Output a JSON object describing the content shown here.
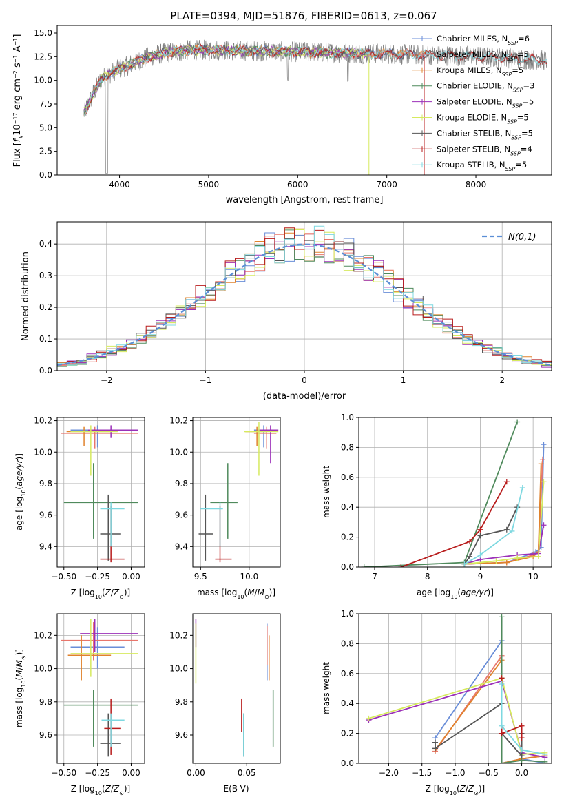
{
  "figure": {
    "title": "PLATE=0394, MJD=51876, FIBERID=0613, z=0.067"
  },
  "colors": {
    "Chabrier MILES": "#6a8ed8",
    "Salpeter MILES": "#e8766c",
    "Kroupa MILES": "#e0822c",
    "Chabrier ELODIE": "#4f8a5c",
    "Salpeter ELODIE": "#9b30b8",
    "Kroupa ELODIE": "#d6ea5e",
    "Chabrier STELIB": "#555555",
    "Salpeter STELIB": "#b81c1c",
    "Kroupa STELIB": "#7ed8e0",
    "data": "#808080",
    "normal": "#5b8ed6"
  },
  "chart_data": [
    {
      "id": "spectrum",
      "type": "line",
      "title": "PLATE=0394, MJD=51876, FIBERID=0613, z=0.067",
      "xlabel": "wavelength [Angstrom, rest frame]",
      "ylabel": "Flux [f_λ 10^-17 erg cm^-2 s^-1 A^-1]",
      "xlim": [
        3300,
        8850
      ],
      "ylim": [
        0,
        15.8
      ],
      "xticks": [
        4000,
        5000,
        6000,
        7000,
        8000
      ],
      "yticks": [
        0.0,
        2.5,
        5.0,
        7.5,
        10.0,
        12.5,
        15.0
      ],
      "grid": false,
      "legend": "top-right",
      "continuum": [
        [
          3600,
          6.5
        ],
        [
          3700,
          8.5
        ],
        [
          3800,
          10.2
        ],
        [
          3950,
          11.0
        ],
        [
          4100,
          11.6
        ],
        [
          4300,
          12.4
        ],
        [
          4500,
          12.9
        ],
        [
          4800,
          13.2
        ],
        [
          5100,
          13.2
        ],
        [
          5500,
          13.1
        ],
        [
          6000,
          13.0
        ],
        [
          6500,
          12.9
        ],
        [
          7000,
          12.8
        ],
        [
          7400,
          12.7
        ],
        [
          7800,
          12.6
        ],
        [
          8300,
          12.4
        ],
        [
          8800,
          12.1
        ]
      ],
      "series": [
        {
          "name": "Chabrier MILES, N_SSP=6",
          "end": 7450
        },
        {
          "name": "Salpeter MILES, N_SSP=5",
          "end": 7450
        },
        {
          "name": "Kroupa MILES, N_SSP=5",
          "end": 7450
        },
        {
          "name": "Chabrier ELODIE, N_SSP=3",
          "end": 6800
        },
        {
          "name": "Salpeter ELODIE, N_SSP=5",
          "end": 6800
        },
        {
          "name": "Kroupa ELODIE, N_SSP=5",
          "end": 6800
        },
        {
          "name": "Chabrier STELIB, N_SSP=5",
          "end": 8800
        },
        {
          "name": "Salpeter STELIB, N_SSP=4",
          "end": 8800
        },
        {
          "name": "Kroupa STELIB, N_SSP=5",
          "end": 8800
        }
      ]
    },
    {
      "id": "residuals",
      "type": "line",
      "xlabel": "(data-model)/error",
      "ylabel": "Normed distribution",
      "xlim": [
        -2.5,
        2.5
      ],
      "ylim": [
        0,
        0.47
      ],
      "xticks": [
        -2,
        -1,
        0,
        1,
        2
      ],
      "yticks": [
        0.0,
        0.1,
        0.2,
        0.3,
        0.4
      ],
      "grid": true,
      "legend": "top-right",
      "normal_label": "N(0,1)",
      "bin_width": 0.1
    },
    {
      "id": "age_vs_Z",
      "type": "scatter",
      "xlabel": "Z [log10(Z/Z⊙)]",
      "ylabel": "age [log10(age/yr)]",
      "xlim": [
        -0.55,
        0.1
      ],
      "ylim": [
        9.27,
        10.22
      ],
      "xticks": [
        -0.5,
        -0.25,
        0.0
      ],
      "xtick_labels": [
        "−0.50",
        "−0.25",
        "0.00"
      ],
      "yticks": [
        9.4,
        9.6,
        9.8,
        10.0,
        10.2
      ],
      "grid": true,
      "points": [
        {
          "model": "Chabrier MILES",
          "x": -0.25,
          "y": 10.14,
          "ex": [
            -0.45,
            -0.05
          ],
          "ey": [
            10.03,
            10.17
          ]
        },
        {
          "model": "Salpeter MILES",
          "x": -0.27,
          "y": 10.12,
          "ex": [
            -0.52,
            0.05
          ],
          "ey": [
            10.02,
            10.16
          ]
        },
        {
          "model": "Kroupa MILES",
          "x": -0.35,
          "y": 10.13,
          "ex": [
            -0.48,
            -0.15
          ],
          "ey": [
            10.04,
            10.16
          ]
        },
        {
          "model": "Chabrier ELODIE",
          "x": -0.28,
          "y": 9.68,
          "ex": [
            -0.5,
            0.05
          ],
          "ey": [
            9.45,
            9.93
          ]
        },
        {
          "model": "Salpeter ELODIE",
          "x": -0.15,
          "y": 10.14,
          "ex": [
            -0.32,
            0.05
          ],
          "ey": [
            10.09,
            10.17
          ]
        },
        {
          "model": "Kroupa ELODIE",
          "x": -0.3,
          "y": 10.13,
          "ex": [
            -0.45,
            -0.1
          ],
          "ey": [
            9.85,
            10.17
          ]
        },
        {
          "model": "Chabrier STELIB",
          "x": -0.17,
          "y": 9.48,
          "ex": [
            -0.23,
            -0.08
          ],
          "ey": [
            9.31,
            9.73
          ]
        },
        {
          "model": "Salpeter STELIB",
          "x": -0.15,
          "y": 9.32,
          "ex": [
            -0.23,
            -0.05
          ],
          "ey": [
            9.3,
            9.66
          ]
        },
        {
          "model": "Kroupa STELIB",
          "x": -0.15,
          "y": 9.64,
          "ex": [
            -0.23,
            -0.05
          ],
          "ey": [
            9.4,
            9.68
          ]
        }
      ]
    },
    {
      "id": "age_vs_mass",
      "type": "scatter",
      "xlabel": "mass [log10(M/M⊙)]",
      "ylabel": "",
      "xlim": [
        9.42,
        10.32
      ],
      "ylim": [
        9.27,
        10.22
      ],
      "xticks": [
        9.5,
        10.0
      ],
      "xtick_labels": [
        "9.5",
        "10.0"
      ],
      "yticks": [
        9.4,
        9.6,
        9.8,
        10.0,
        10.2
      ],
      "grid": true,
      "points": [
        {
          "model": "Chabrier MILES",
          "x": 10.15,
          "y": 10.14,
          "ex": [
            10.05,
            10.25
          ],
          "ey": [
            10.03,
            10.17
          ]
        },
        {
          "model": "Salpeter MILES",
          "x": 10.18,
          "y": 10.12,
          "ex": [
            10.05,
            10.28
          ],
          "ey": [
            10.02,
            10.16
          ]
        },
        {
          "model": "Kroupa MILES",
          "x": 10.08,
          "y": 10.13,
          "ex": [
            9.96,
            10.18
          ],
          "ey": [
            10.04,
            10.16
          ]
        },
        {
          "model": "Chabrier ELODIE",
          "x": 9.78,
          "y": 9.68,
          "ex": [
            9.6,
            9.88
          ],
          "ey": [
            9.45,
            9.93
          ]
        },
        {
          "model": "Salpeter ELODIE",
          "x": 10.22,
          "y": 10.14,
          "ex": [
            10.1,
            10.3
          ],
          "ey": [
            9.93,
            10.17
          ]
        },
        {
          "model": "Kroupa ELODIE",
          "x": 10.1,
          "y": 10.13,
          "ex": [
            9.95,
            10.3
          ],
          "ey": [
            9.85,
            10.19
          ]
        },
        {
          "model": "Chabrier STELIB",
          "x": 9.55,
          "y": 9.48,
          "ex": [
            9.48,
            9.63
          ],
          "ey": [
            9.31,
            9.73
          ]
        },
        {
          "model": "Salpeter STELIB",
          "x": 9.7,
          "y": 9.32,
          "ex": [
            9.65,
            9.82
          ],
          "ey": [
            9.3,
            9.66
          ]
        },
        {
          "model": "Kroupa STELIB",
          "x": 9.7,
          "y": 9.64,
          "ex": [
            9.5,
            9.73
          ],
          "ey": [
            9.4,
            9.68
          ]
        }
      ]
    },
    {
      "id": "mass_weight_vs_age",
      "type": "line",
      "xlabel": "age [log10(age/yr)]",
      "ylabel": "mass weight",
      "xlim": [
        6.7,
        10.35
      ],
      "ylim": [
        0,
        1.0
      ],
      "xticks": [
        7,
        8,
        9,
        10
      ],
      "yticks": [
        0.0,
        0.2,
        0.4,
        0.6,
        0.8,
        1.0
      ],
      "grid": true,
      "series": [
        {
          "model": "Chabrier MILES",
          "x": [
            8.7,
            9.5,
            10.05,
            10.15,
            10.2
          ],
          "y": [
            0.02,
            0.03,
            0.1,
            0.13,
            0.82
          ]
        },
        {
          "model": "Salpeter MILES",
          "x": [
            8.7,
            9.5,
            10.0,
            10.1,
            10.18
          ],
          "y": [
            0.02,
            0.03,
            0.08,
            0.1,
            0.72
          ]
        },
        {
          "model": "Kroupa MILES",
          "x": [
            8.7,
            9.5,
            10.0,
            10.1,
            10.15
          ],
          "y": [
            0.02,
            0.03,
            0.07,
            0.1,
            0.69
          ]
        },
        {
          "model": "Chabrier ELODIE",
          "x": [
            6.8,
            8.7,
            9.7
          ],
          "y": [
            0.0,
            0.03,
            0.97
          ]
        },
        {
          "model": "Salpeter ELODIE",
          "x": [
            8.7,
            9.0,
            9.7,
            10.1,
            10.2
          ],
          "y": [
            0.02,
            0.05,
            0.08,
            0.09,
            0.28
          ]
        },
        {
          "model": "Kroupa ELODIE",
          "x": [
            8.7,
            9.3,
            9.7,
            10.1,
            10.2
          ],
          "y": [
            0.02,
            0.04,
            0.06,
            0.07,
            0.57
          ]
        },
        {
          "model": "Chabrier STELIB",
          "x": [
            8.7,
            8.8,
            9.0,
            9.5,
            9.7
          ],
          "y": [
            0.02,
            0.07,
            0.21,
            0.25,
            0.4
          ]
        },
        {
          "model": "Salpeter STELIB",
          "x": [
            7.5,
            8.8,
            9.0,
            9.5
          ],
          "y": [
            0.0,
            0.17,
            0.25,
            0.57
          ]
        },
        {
          "model": "Kroupa STELIB",
          "x": [
            8.7,
            9.0,
            9.6,
            9.8
          ],
          "y": [
            0.02,
            0.08,
            0.24,
            0.53
          ]
        }
      ]
    },
    {
      "id": "mass_vs_Z",
      "type": "scatter",
      "xlabel": "Z [log10(Z/Z⊙)]",
      "ylabel": "mass [log10(M/M⊙)]",
      "xlim": [
        -0.55,
        0.1
      ],
      "ylim": [
        9.43,
        10.33
      ],
      "xticks": [
        -0.5,
        -0.25,
        0.0
      ],
      "xtick_labels": [
        "−0.50",
        "−0.25",
        "0.00"
      ],
      "yticks": [
        9.6,
        9.8,
        10.0,
        10.2
      ],
      "grid": true,
      "points": [
        {
          "model": "Chabrier MILES",
          "x": -0.25,
          "y": 10.13,
          "ex": [
            -0.45,
            -0.05
          ],
          "ey": [
            10.0,
            10.25
          ]
        },
        {
          "model": "Salpeter MILES",
          "x": -0.28,
          "y": 10.17,
          "ex": [
            -0.52,
            0.05
          ],
          "ey": [
            10.05,
            10.28
          ]
        },
        {
          "model": "Kroupa MILES",
          "x": -0.37,
          "y": 10.08,
          "ex": [
            -0.47,
            -0.15
          ],
          "ey": [
            9.93,
            10.2
          ]
        },
        {
          "model": "Chabrier ELODIE",
          "x": -0.28,
          "y": 9.78,
          "ex": [
            -0.5,
            0.05
          ],
          "ey": [
            9.53,
            9.87
          ]
        },
        {
          "model": "Salpeter ELODIE",
          "x": -0.27,
          "y": 10.21,
          "ex": [
            -0.38,
            0.05
          ],
          "ey": [
            10.1,
            10.3
          ]
        },
        {
          "model": "Kroupa ELODIE",
          "x": -0.3,
          "y": 10.09,
          "ex": [
            -0.45,
            0.05
          ],
          "ey": [
            9.95,
            10.3
          ]
        },
        {
          "model": "Chabrier STELIB",
          "x": -0.17,
          "y": 9.55,
          "ex": [
            -0.23,
            -0.08
          ],
          "ey": [
            9.47,
            9.73
          ]
        },
        {
          "model": "Salpeter STELIB",
          "x": -0.15,
          "y": 9.64,
          "ex": [
            -0.2,
            -0.08
          ],
          "ey": [
            9.48,
            9.82
          ]
        },
        {
          "model": "Kroupa STELIB",
          "x": -0.15,
          "y": 9.69,
          "ex": [
            -0.22,
            -0.05
          ],
          "ey": [
            9.53,
            9.73
          ]
        }
      ]
    },
    {
      "id": "mass_vs_ebv",
      "type": "scatter",
      "xlabel": "E(B-V)",
      "ylabel": "",
      "xlim": [
        -0.003,
        0.083
      ],
      "ylim": [
        9.43,
        10.33
      ],
      "xticks": [
        0.0,
        0.05
      ],
      "xtick_labels": [
        "0.00",
        "0.05"
      ],
      "yticks": [
        9.6,
        9.8,
        10.0,
        10.2
      ],
      "grid": false,
      "points": [
        {
          "model": "Chabrier MILES",
          "x": 0.07,
          "y": 10.13,
          "ex": [
            0.07,
            0.07
          ],
          "ey": [
            9.93,
            10.27
          ]
        },
        {
          "model": "Salpeter MILES",
          "x": 0.07,
          "y": 10.17,
          "ex": [
            0.07,
            0.07
          ],
          "ey": [
            10.02,
            10.26
          ]
        },
        {
          "model": "Kroupa MILES",
          "x": 0.072,
          "y": 10.08,
          "ex": [
            0.072,
            0.072
          ],
          "ey": [
            9.93,
            10.2
          ]
        },
        {
          "model": "Chabrier ELODIE",
          "x": 0.076,
          "y": 9.78,
          "ex": [
            0.076,
            0.076
          ],
          "ey": [
            9.53,
            9.87
          ]
        },
        {
          "model": "Salpeter ELODIE",
          "x": 0.0,
          "y": 10.21,
          "ex": [
            0.0,
            0.0
          ],
          "ey": [
            10.13,
            10.3
          ]
        },
        {
          "model": "Kroupa ELODIE",
          "x": 0.0,
          "y": 10.09,
          "ex": [
            0.0,
            0.0
          ],
          "ey": [
            9.91,
            10.27
          ]
        },
        {
          "model": "Chabrier STELIB",
          "x": 0.047,
          "y": 9.55,
          "ex": [
            0.047,
            0.047
          ],
          "ey": [
            9.47,
            9.73
          ]
        },
        {
          "model": "Salpeter STELIB",
          "x": 0.045,
          "y": 9.64,
          "ex": [
            0.045,
            0.045
          ],
          "ey": [
            9.62,
            9.82
          ]
        },
        {
          "model": "Kroupa STELIB",
          "x": 0.047,
          "y": 9.69,
          "ex": [
            0.047,
            0.047
          ],
          "ey": [
            9.47,
            9.73
          ]
        }
      ]
    },
    {
      "id": "mass_weight_vs_Z",
      "type": "line",
      "xlabel": "Z [log10(Z/Z⊙)]",
      "ylabel": "mass weight",
      "xlim": [
        -2.45,
        0.45
      ],
      "ylim": [
        0,
        1.0
      ],
      "xticks": [
        -2.0,
        -1.5,
        -1.0,
        -0.5,
        0.0
      ],
      "xtick_labels": [
        "−2.0",
        "−1.5",
        "−1.0",
        "−0.5",
        "0.0"
      ],
      "yticks": [
        0.0,
        0.2,
        0.4,
        0.6,
        0.8,
        1.0
      ],
      "grid": true,
      "series": [
        {
          "model": "Chabrier MILES",
          "x": [
            -1.3,
            -0.3,
            -0.3,
            0.0,
            0.35
          ],
          "y": [
            0.17,
            0.82,
            0.0,
            0.03,
            0.0
          ]
        },
        {
          "model": "Salpeter MILES",
          "x": [
            -1.3,
            -0.3,
            -0.3,
            0.0,
            0.35
          ],
          "y": [
            0.08,
            0.72,
            0.0,
            0.03,
            0.05
          ]
        },
        {
          "model": "Kroupa MILES",
          "x": [
            -1.3,
            -0.3,
            -0.3,
            0.0,
            0.35
          ],
          "y": [
            0.09,
            0.69,
            0.0,
            0.03,
            0.05
          ]
        },
        {
          "model": "Chabrier ELODIE",
          "x": [
            -0.3,
            -0.3,
            0.0,
            0.35
          ],
          "y": [
            0.98,
            0.0,
            0.02,
            0.01
          ]
        },
        {
          "model": "Salpeter ELODIE",
          "x": [
            -2.3,
            -0.3,
            0.0,
            0.35
          ],
          "y": [
            0.29,
            0.55,
            0.07,
            0.04
          ]
        },
        {
          "model": "Kroupa ELODIE",
          "x": [
            -2.3,
            -0.3,
            0.0,
            0.35
          ],
          "y": [
            0.3,
            0.57,
            0.06,
            0.07
          ]
        },
        {
          "model": "Chabrier STELIB",
          "x": [
            -1.3,
            -1.3,
            -0.3,
            -0.3,
            0.0,
            0.0
          ],
          "y": [
            0.14,
            0.1,
            0.4,
            0.2,
            0.05,
            0.2
          ]
        },
        {
          "model": "Salpeter STELIB",
          "x": [
            -0.3,
            -0.3,
            0.0,
            0.0
          ],
          "y": [
            0.57,
            0.2,
            0.25,
            0.17
          ]
        },
        {
          "model": "Kroupa STELIB",
          "x": [
            -0.3,
            -0.3,
            0.0,
            0.35
          ],
          "y": [
            0.53,
            0.25,
            0.09,
            0.06
          ]
        }
      ]
    }
  ]
}
